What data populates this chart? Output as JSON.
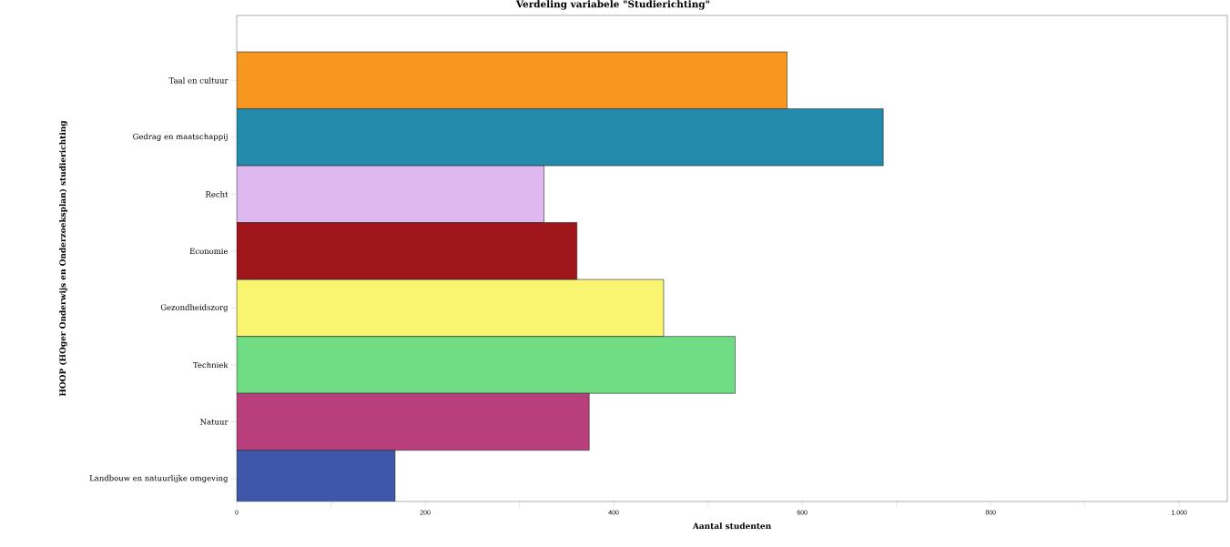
{
  "chart_data": {
    "type": "bar",
    "orientation": "horizontal",
    "title": "Verdeling variabele \"Studierichting\"",
    "xlabel": "Aantal studenten",
    "ylabel": "HOOP (HOger Onderwijs en Onderzoeksplan) studierichting",
    "categories": [
      "Taal en cultuur",
      "Gedrag en maatschappij",
      "Recht",
      "Economie",
      "Gezondheidszorg",
      "Techniek",
      "Natuur",
      "Landbouw en natuurlijke omgeving"
    ],
    "values": [
      584,
      686,
      326,
      361,
      453,
      529,
      374,
      168
    ],
    "colors": [
      "#f7971f",
      "#248aab",
      "#dfb8f0",
      "#a0161a",
      "#f9f570",
      "#70dd85",
      "#b93f7c",
      "#3f57a8"
    ],
    "xlim": [
      0,
      1051
    ],
    "xticks": [
      0,
      {
        "value": 100,
        "label": null
      },
      200,
      {
        "value": 300,
        "label": null
      },
      400,
      {
        "value": 500,
        "label": null
      },
      600,
      {
        "value": 700,
        "label": null
      },
      800,
      {
        "value": 900,
        "label": null
      },
      {
        "value": 1000,
        "label": "1.000"
      }
    ]
  }
}
